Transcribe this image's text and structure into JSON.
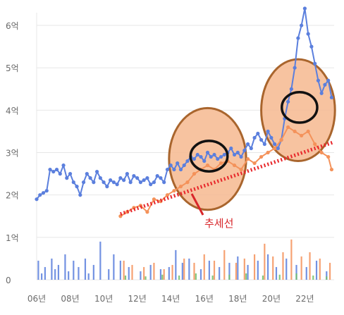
{
  "colors": {
    "blue": "#5b7fdd",
    "orange": "#f4925a",
    "trend": "#e8262a",
    "circle_fill": "#f6b98f",
    "circle_stroke": "#a9652d",
    "bar_green": "#6fc06a",
    "grid": "#e7e7e7",
    "tick": "#6b6b6b",
    "annotation": "#d8262a"
  },
  "chart_data": {
    "type": "line",
    "title": "",
    "xlabel": "",
    "ylabel": "",
    "ylim": [
      0,
      6.3
    ],
    "xlim": [
      2006.0,
      2023.75
    ],
    "y_ticks": [
      {
        "value": 0,
        "label": "0"
      },
      {
        "value": 1,
        "label": "1억"
      },
      {
        "value": 2,
        "label": "2억"
      },
      {
        "value": 3,
        "label": "3억"
      },
      {
        "value": 4,
        "label": "4억"
      },
      {
        "value": 5,
        "label": "5억"
      },
      {
        "value": 6,
        "label": "6억"
      }
    ],
    "x_ticks": [
      {
        "value": 2006,
        "label": "06년"
      },
      {
        "value": 2008,
        "label": "08년"
      },
      {
        "value": 2010,
        "label": "10년"
      },
      {
        "value": 2012,
        "label": "12년"
      },
      {
        "value": 2014,
        "label": "14년"
      },
      {
        "value": 2016,
        "label": "16년"
      },
      {
        "value": 2018,
        "label": "18년"
      },
      {
        "value": 2020,
        "label": "20년"
      },
      {
        "value": 2022,
        "label": "22년"
      }
    ],
    "grid": true,
    "series": [
      {
        "color": "#5b7fdd",
        "x": [
          2006.0,
          2006.2,
          2006.4,
          2006.6,
          2006.8,
          2007.0,
          2007.2,
          2007.4,
          2007.6,
          2007.8,
          2008.0,
          2008.2,
          2008.4,
          2008.6,
          2008.8,
          2009.0,
          2009.2,
          2009.4,
          2009.6,
          2009.8,
          2010.0,
          2010.2,
          2010.4,
          2010.6,
          2010.8,
          2011.0,
          2011.2,
          2011.4,
          2011.6,
          2011.8,
          2012.0,
          2012.2,
          2012.4,
          2012.6,
          2012.8,
          2013.0,
          2013.2,
          2013.4,
          2013.6,
          2013.8,
          2014.0,
          2014.2,
          2014.4,
          2014.6,
          2014.8,
          2015.0,
          2015.2,
          2015.4,
          2015.6,
          2015.8,
          2016.0,
          2016.2,
          2016.4,
          2016.6,
          2016.8,
          2017.0,
          2017.2,
          2017.4,
          2017.6,
          2017.8,
          2018.0,
          2018.2,
          2018.4,
          2018.6,
          2018.8,
          2019.0,
          2019.2,
          2019.4,
          2019.6,
          2019.8,
          2020.0,
          2020.2,
          2020.4,
          2020.6,
          2020.8,
          2021.0,
          2021.2,
          2021.4,
          2021.6,
          2021.8,
          2022.0,
          2022.2,
          2022.4,
          2022.6,
          2022.8,
          2023.0,
          2023.2,
          2023.4,
          2023.6
        ],
        "values": [
          1.9,
          2.0,
          2.05,
          2.1,
          2.6,
          2.55,
          2.6,
          2.5,
          2.7,
          2.4,
          2.5,
          2.3,
          2.2,
          2.0,
          2.3,
          2.5,
          2.4,
          2.3,
          2.55,
          2.4,
          2.3,
          2.2,
          2.35,
          2.3,
          2.25,
          2.4,
          2.35,
          2.5,
          2.3,
          2.45,
          2.4,
          2.3,
          2.35,
          2.4,
          2.25,
          2.3,
          2.45,
          2.4,
          2.3,
          2.6,
          2.7,
          2.6,
          2.75,
          2.6,
          2.7,
          2.8,
          2.9,
          2.85,
          2.95,
          2.9,
          2.8,
          3.0,
          2.9,
          2.95,
          2.85,
          2.9,
          2.95,
          3.0,
          3.1,
          2.95,
          3.0,
          2.9,
          3.05,
          3.2,
          3.1,
          3.35,
          3.45,
          3.3,
          3.2,
          3.5,
          3.35,
          3.2,
          3.1,
          3.3,
          3.8,
          4.2,
          4.5,
          5.0,
          5.7,
          6.0,
          6.4,
          5.8,
          5.5,
          5.1,
          4.7,
          4.4,
          4.6,
          4.7,
          4.3
        ],
        "name": ""
      },
      {
        "color": "#f4925a",
        "x": [
          2011.0,
          2011.4,
          2011.8,
          2012.2,
          2012.6,
          2013.0,
          2013.4,
          2013.8,
          2014.2,
          2014.6,
          2015.0,
          2015.4,
          2015.8,
          2016.2,
          2016.6,
          2017.0,
          2017.4,
          2017.8,
          2018.2,
          2018.6,
          2019.0,
          2019.4,
          2019.8,
          2020.2,
          2020.6,
          2021.0,
          2021.4,
          2021.8,
          2022.2,
          2022.6,
          2023.0,
          2023.4,
          2023.6
        ],
        "values": [
          1.5,
          1.6,
          1.7,
          1.75,
          1.6,
          1.9,
          1.85,
          2.0,
          2.1,
          2.2,
          2.3,
          2.5,
          2.6,
          2.7,
          2.6,
          2.75,
          2.8,
          2.7,
          2.6,
          2.85,
          2.75,
          2.9,
          3.0,
          3.1,
          3.3,
          3.6,
          3.5,
          3.4,
          3.5,
          3.2,
          3.0,
          2.9,
          2.6
        ],
        "name": ""
      }
    ],
    "trend": {
      "x": [
        2011.0,
        2023.75
      ],
      "values": [
        1.55,
        3.25
      ]
    },
    "bars": {
      "blue": {
        "x": [
          2006.1,
          2006.3,
          2006.5,
          2006.9,
          2007.1,
          2007.3,
          2007.7,
          2007.9,
          2008.2,
          2008.5,
          2008.9,
          2009.1,
          2009.4,
          2009.8,
          2010.3,
          2010.6,
          2011.0,
          2011.5,
          2012.2,
          2012.8,
          2013.4,
          2013.9,
          2014.3,
          2014.7,
          2015.1,
          2015.8,
          2016.3,
          2016.9,
          2017.5,
          2018.0,
          2018.6,
          2019.2,
          2019.8,
          2020.3,
          2020.9,
          2021.5,
          2022.1,
          2022.7,
          2023.3
        ],
        "values": [
          0.45,
          0.15,
          0.3,
          0.5,
          0.25,
          0.35,
          0.6,
          0.2,
          0.45,
          0.3,
          0.5,
          0.15,
          0.35,
          0.9,
          0.25,
          0.6,
          0.45,
          0.3,
          0.2,
          0.35,
          0.25,
          0.3,
          0.7,
          0.4,
          0.5,
          0.25,
          0.45,
          0.3,
          0.4,
          0.55,
          0.35,
          0.45,
          0.6,
          0.3,
          0.5,
          0.35,
          0.3,
          0.45,
          0.2
        ]
      },
      "orange": {
        "x": [
          2011.2,
          2011.7,
          2012.4,
          2013.0,
          2013.6,
          2014.1,
          2014.8,
          2015.4,
          2016.0,
          2016.6,
          2017.2,
          2017.9,
          2018.4,
          2019.0,
          2019.6,
          2020.1,
          2020.7,
          2021.2,
          2021.8,
          2022.3,
          2022.9,
          2023.5
        ],
        "values": [
          0.45,
          0.35,
          0.3,
          0.4,
          0.25,
          0.35,
          0.5,
          0.4,
          0.6,
          0.45,
          0.7,
          0.4,
          0.5,
          0.6,
          0.85,
          0.55,
          0.65,
          0.95,
          0.55,
          0.65,
          0.5,
          0.4
        ]
      },
      "green": {
        "x": [
          2011.3,
          2012.5,
          2013.5,
          2014.5,
          2015.5,
          2016.5,
          2017.5,
          2018.5,
          2019.5,
          2020.5,
          2021.5,
          2022.5,
          2023.3
        ],
        "values": [
          0.1,
          0.08,
          0.12,
          0.1,
          0.15,
          0.1,
          0.12,
          0.15,
          0.1,
          0.12,
          0.15,
          0.1,
          0.08
        ]
      }
    },
    "highlights": [
      {
        "cx": 2016.2,
        "cy": 2.85,
        "rx_years": 2.3,
        "ry_units": 1.2
      },
      {
        "cx": 2021.6,
        "cy": 4.0,
        "rx_years": 2.2,
        "ry_units": 1.2
      }
    ],
    "annotation_label": "추세선"
  }
}
